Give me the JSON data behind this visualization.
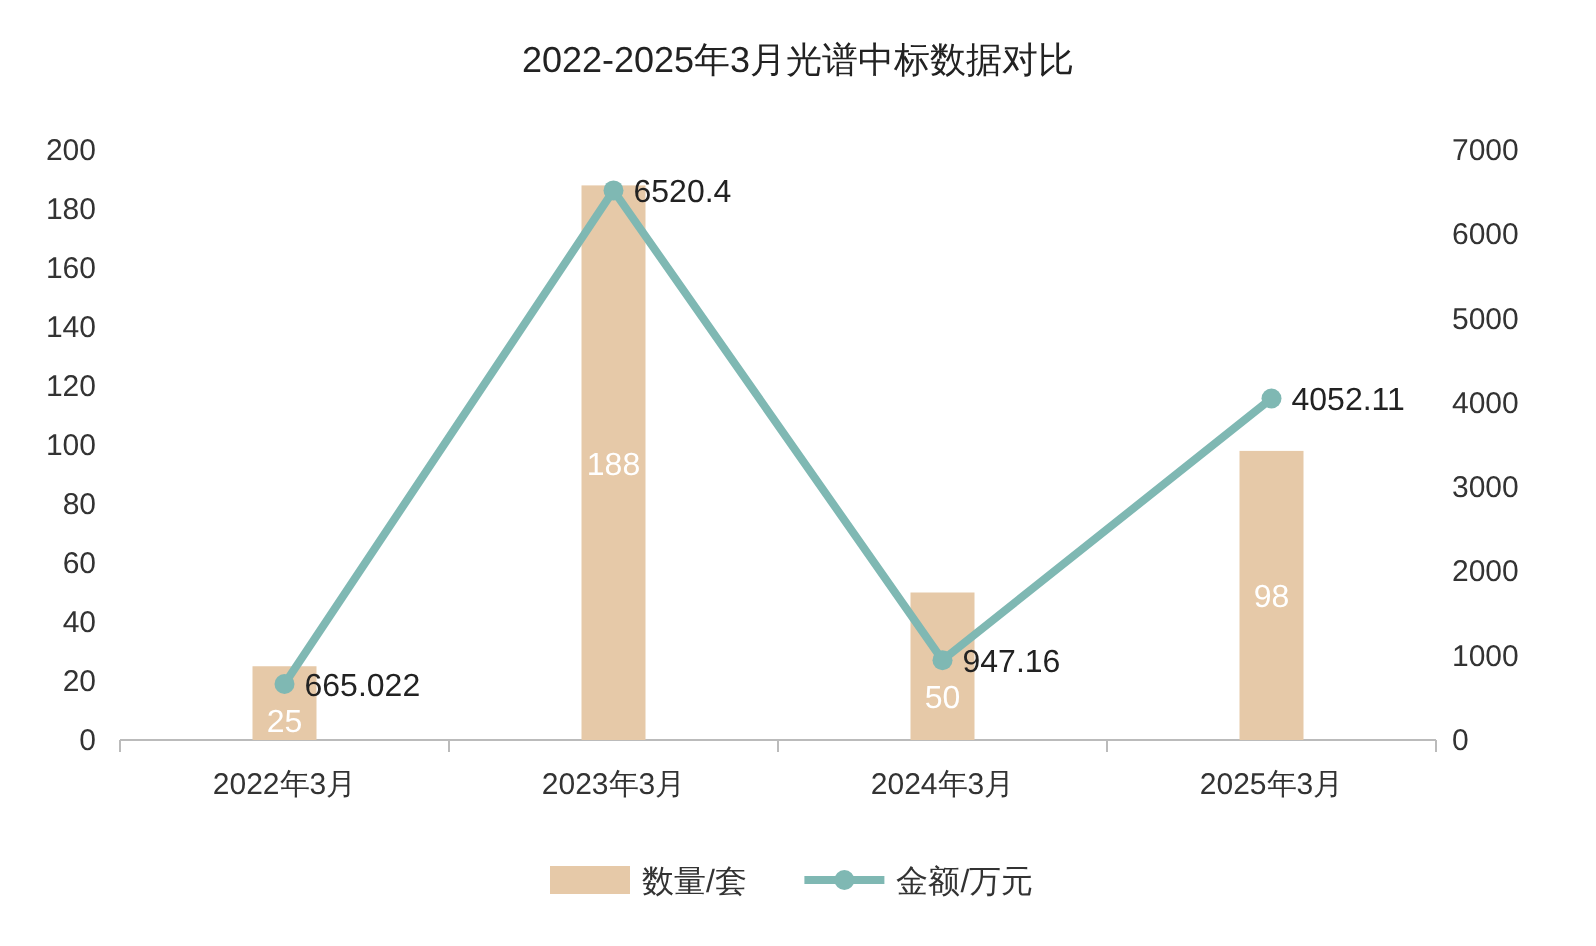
{
  "chart_data": {
    "type": "bar",
    "title": "2022-2025年3月光谱中标数据对比",
    "categories": [
      "2022年3月",
      "2023年3月",
      "2024年3月",
      "2025年3月"
    ],
    "series": [
      {
        "name": "数量/套",
        "color": "#e6c9a8",
        "values": [
          25,
          188,
          50,
          98
        ]
      },
      {
        "name": "金额/万元",
        "type": "line",
        "axis": "y2",
        "color": "#7fb8b3",
        "values": [
          665.022,
          6520.4,
          947.16,
          4052.11
        ]
      }
    ],
    "ylim": [
      0,
      200
    ],
    "yticks": [
      0,
      20,
      40,
      60,
      80,
      100,
      120,
      140,
      160,
      180,
      200
    ],
    "y2lim": [
      0,
      7000
    ],
    "y2ticks": [
      0,
      1000,
      2000,
      3000,
      4000,
      5000,
      6000,
      7000
    ],
    "data_labels": true,
    "marker": "circle",
    "legend": "bottom"
  }
}
